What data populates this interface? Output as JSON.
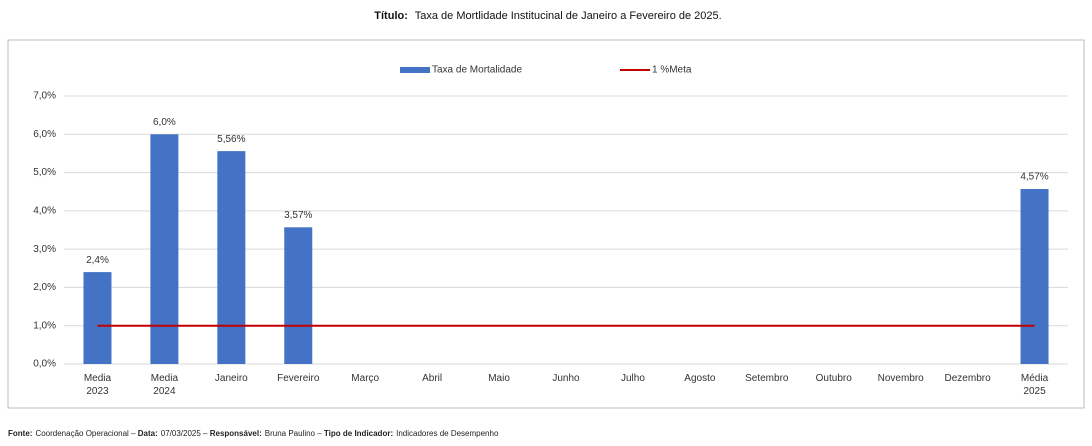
{
  "chart_data": {
    "type": "bar",
    "title_label": "Título:",
    "title": "Taxa de Mortlidade Institucinal de Janeiro a Fevereiro de 2025.",
    "categories": [
      "Media\n2023",
      "Media\n2024",
      "Janeiro",
      "Fevereiro",
      "Março",
      "Abril",
      "Maio",
      "Junho",
      "Julho",
      "Agosto",
      "Setembro",
      "Outubro",
      "Novembro",
      "Dezembro",
      "Média\n2025"
    ],
    "series": [
      {
        "name": "Taxa de Mortalidade",
        "type": "bar",
        "color": "#4472c4",
        "values": [
          2.4,
          6.0,
          5.56,
          3.57,
          null,
          null,
          null,
          null,
          null,
          null,
          null,
          null,
          null,
          null,
          4.57
        ],
        "value_labels": [
          "2,4%",
          "6,0%",
          "5,56%",
          "3,57%",
          null,
          null,
          null,
          null,
          null,
          null,
          null,
          null,
          null,
          null,
          "4,57%"
        ]
      },
      {
        "name": "1 %Meta",
        "type": "line",
        "color": "#c00000",
        "values": [
          1,
          1,
          1,
          1,
          1,
          1,
          1,
          1,
          1,
          1,
          1,
          1,
          1,
          1,
          1
        ]
      }
    ],
    "ylim": [
      0,
      7
    ],
    "yticks": [
      {
        "value": 0,
        "label": "0,0%"
      },
      {
        "value": 1,
        "label": "1,0%"
      },
      {
        "value": 2,
        "label": "2,0%"
      },
      {
        "value": 3,
        "label": "3,0%"
      },
      {
        "value": 4,
        "label": "4,0%"
      },
      {
        "value": 5,
        "label": "5,0%"
      },
      {
        "value": 6,
        "label": "6,0%"
      },
      {
        "value": 7,
        "label": "7,0%"
      }
    ],
    "grid": true,
    "legend": "top",
    "footer": [
      {
        "label": "Fonte:",
        "text": "Coordenação Operacional"
      },
      {
        "label": "Data:",
        "text": "07/03/2025"
      },
      {
        "label": "Responsável:",
        "text": "Bruna Paulino"
      },
      {
        "label": "Tipo de Indicador:",
        "text": "Indicadores de Desempenho"
      }
    ]
  }
}
